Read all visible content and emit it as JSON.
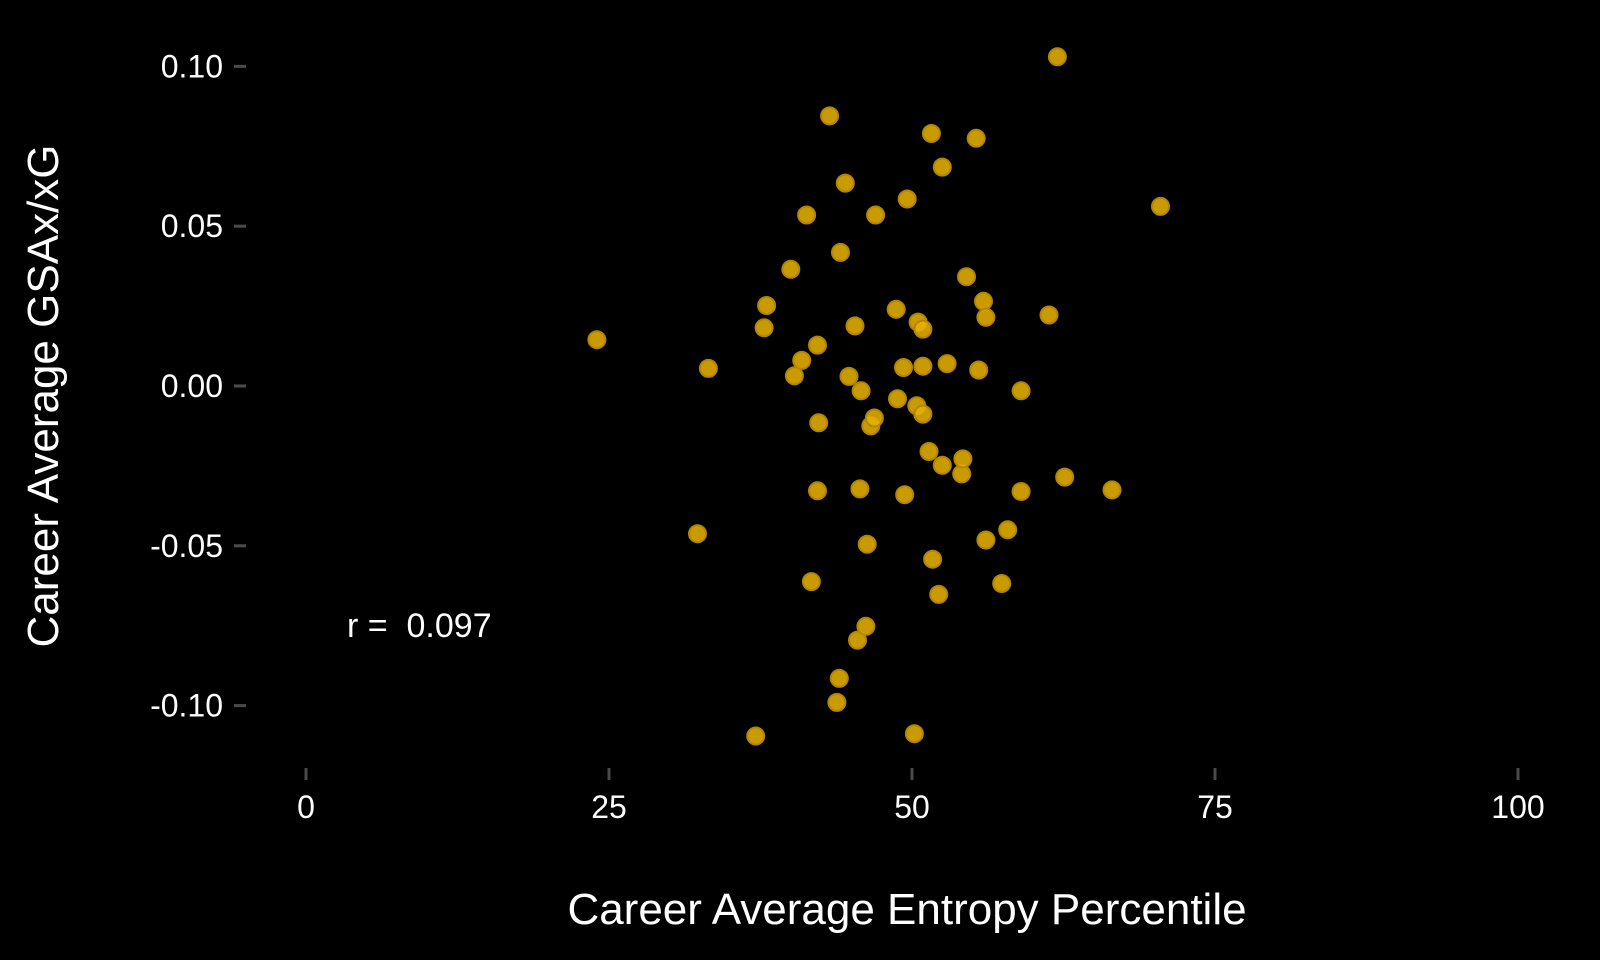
{
  "chart_data": {
    "type": "scatter",
    "title": "",
    "xlabel": "Career Average Entropy Percentile",
    "ylabel": "Career Average GSAx/xG",
    "xlim": [
      0,
      100
    ],
    "ylim": [
      -0.11,
      0.1
    ],
    "x_ticks": [
      0,
      25,
      50,
      75,
      100
    ],
    "x_tick_labels": [
      "0",
      "25",
      "50",
      "75",
      "100"
    ],
    "y_ticks": [
      0.1,
      0.05,
      0.0,
      -0.05,
      -0.1
    ],
    "y_tick_labels": [
      "0.10",
      "0.05",
      "0.00",
      "-0.05",
      "-0.10"
    ],
    "grid": false,
    "point_color": "#E6B000",
    "point_stroke": "#B38600",
    "background": "#000000",
    "annotation": "r =  0.097",
    "points": [
      {
        "x": 24.0,
        "y": 0.0145
      },
      {
        "x": 33.2,
        "y": 0.0055
      },
      {
        "x": 32.3,
        "y": -0.0462
      },
      {
        "x": 37.1,
        "y": -0.1095
      },
      {
        "x": 37.8,
        "y": 0.0182
      },
      {
        "x": 38.0,
        "y": 0.0252
      },
      {
        "x": 40.0,
        "y": 0.0365
      },
      {
        "x": 40.3,
        "y": 0.0032
      },
      {
        "x": 40.9,
        "y": 0.008
      },
      {
        "x": 41.3,
        "y": 0.0535
      },
      {
        "x": 41.7,
        "y": -0.0612
      },
      {
        "x": 42.2,
        "y": 0.0128
      },
      {
        "x": 42.3,
        "y": -0.0115
      },
      {
        "x": 42.2,
        "y": -0.0328
      },
      {
        "x": 43.2,
        "y": 0.0845
      },
      {
        "x": 44.1,
        "y": 0.0418
      },
      {
        "x": 44.0,
        "y": -0.0915
      },
      {
        "x": 43.8,
        "y": -0.099
      },
      {
        "x": 44.5,
        "y": 0.0635
      },
      {
        "x": 44.8,
        "y": 0.003
      },
      {
        "x": 45.3,
        "y": 0.0188
      },
      {
        "x": 45.5,
        "y": -0.0795
      },
      {
        "x": 45.8,
        "y": -0.0015
      },
      {
        "x": 45.7,
        "y": -0.0322
      },
      {
        "x": 46.2,
        "y": -0.0752
      },
      {
        "x": 46.3,
        "y": -0.0495
      },
      {
        "x": 46.6,
        "y": -0.0125
      },
      {
        "x": 46.9,
        "y": -0.01
      },
      {
        "x": 47.0,
        "y": 0.0535
      },
      {
        "x": 48.7,
        "y": 0.024
      },
      {
        "x": 48.8,
        "y": -0.004
      },
      {
        "x": 49.3,
        "y": 0.0058
      },
      {
        "x": 49.4,
        "y": -0.034
      },
      {
        "x": 49.6,
        "y": 0.0585
      },
      {
        "x": 50.4,
        "y": -0.0062
      },
      {
        "x": 50.5,
        "y": 0.02
      },
      {
        "x": 50.2,
        "y": -0.1088
      },
      {
        "x": 50.9,
        "y": 0.0178
      },
      {
        "x": 50.9,
        "y": 0.0062
      },
      {
        "x": 50.9,
        "y": -0.0088
      },
      {
        "x": 51.4,
        "y": -0.0205
      },
      {
        "x": 51.6,
        "y": 0.079
      },
      {
        "x": 51.7,
        "y": -0.0542
      },
      {
        "x": 52.2,
        "y": -0.0652
      },
      {
        "x": 52.5,
        "y": 0.0685
      },
      {
        "x": 52.5,
        "y": -0.0248
      },
      {
        "x": 52.9,
        "y": 0.007
      },
      {
        "x": 54.1,
        "y": -0.0275
      },
      {
        "x": 54.2,
        "y": -0.0228
      },
      {
        "x": 54.5,
        "y": 0.0342
      },
      {
        "x": 55.3,
        "y": 0.0775
      },
      {
        "x": 55.5,
        "y": 0.005
      },
      {
        "x": 55.9,
        "y": 0.0265
      },
      {
        "x": 56.1,
        "y": 0.0215
      },
      {
        "x": 56.1,
        "y": -0.0482
      },
      {
        "x": 57.4,
        "y": -0.0618
      },
      {
        "x": 57.9,
        "y": -0.045
      },
      {
        "x": 59.0,
        "y": -0.0015
      },
      {
        "x": 59.0,
        "y": -0.033
      },
      {
        "x": 61.3,
        "y": 0.0222
      },
      {
        "x": 62.0,
        "y": 0.103
      },
      {
        "x": 62.6,
        "y": -0.0285
      },
      {
        "x": 66.5,
        "y": -0.0325
      },
      {
        "x": 70.5,
        "y": 0.0562
      }
    ]
  }
}
